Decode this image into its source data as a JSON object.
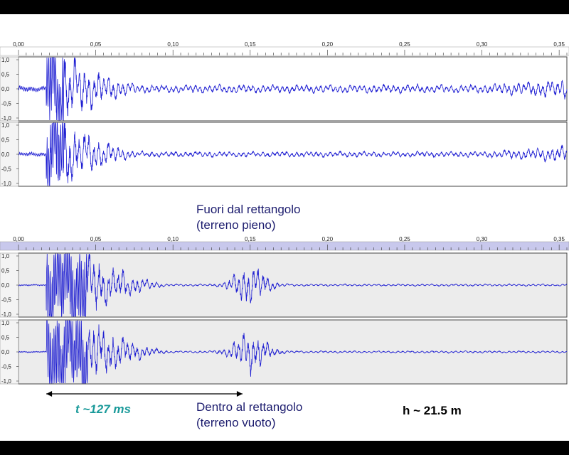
{
  "chart_data": [
    {
      "type": "line",
      "panel": "top",
      "x_ticks": [
        "0,00",
        "0,05",
        "0,10",
        "0,15",
        "0,20",
        "0,25",
        "0,30",
        "0,35"
      ],
      "y_ticks": [
        "1,0",
        "0,5",
        "0,0",
        "-0,5",
        "-1,0"
      ],
      "xlim": [
        0,
        0.355
      ],
      "ylim": [
        -1.0,
        1.0
      ],
      "grid": false,
      "series": [
        {
          "channel": 1,
          "onset_s": 0.018,
          "strong_end_s": 0.03,
          "decay_end_s": 0.08,
          "peak_amplitude": 1.0,
          "coda_amplitude": 0.12,
          "color": "#1e1ed2"
        },
        {
          "channel": 2,
          "onset_s": 0.018,
          "strong_end_s": 0.03,
          "decay_end_s": 0.08,
          "peak_amplitude": 1.0,
          "coda_amplitude": 0.08,
          "color": "#1e1ed2"
        }
      ]
    },
    {
      "type": "line",
      "panel": "bottom",
      "x_ticks": [
        "0,00",
        "0,05",
        "0,10",
        "0,15",
        "0,20",
        "0,25",
        "0,30",
        "0,35"
      ],
      "y_ticks": [
        "1,0",
        "0,5",
        "0,0",
        "-0,5",
        "-1,0"
      ],
      "xlim": [
        0,
        0.355
      ],
      "ylim": [
        -1.0,
        1.0
      ],
      "grid": false,
      "series": [
        {
          "channel": 1,
          "onset_s": 0.018,
          "strong_end_s": 0.045,
          "decay_end_s": 0.1,
          "second_burst_s": 0.15,
          "peak_amplitude": 1.0,
          "coda_amplitude": 0.03,
          "color": "#1e1ed2"
        },
        {
          "channel": 2,
          "onset_s": 0.018,
          "strong_end_s": 0.045,
          "decay_end_s": 0.1,
          "second_burst_s": 0.15,
          "peak_amplitude": 1.0,
          "coda_amplitude": 0.03,
          "color": "#1e1ed2"
        }
      ]
    }
  ],
  "captions": {
    "top_line1": "Fuori dal rettangolo",
    "top_line2": "(terreno pieno)",
    "bottom_line1": "Dentro al rettangolo",
    "bottom_line2": "(terreno vuoto)"
  },
  "annotations": {
    "time": "t ~127 ms",
    "time_color": "#1a9a9a",
    "time_span_s": [
      0.018,
      0.145
    ],
    "height": "h ~ 21.5 m"
  },
  "colors": {
    "waveform": "#1e1ed2",
    "caption": "#1c1c6e",
    "ruler_bottom": "#c8c8ec",
    "plot_bg_bottom": "#ececec"
  }
}
